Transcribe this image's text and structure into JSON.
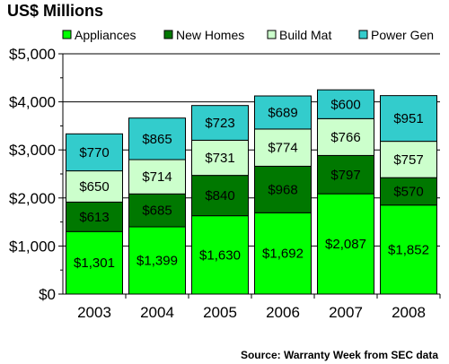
{
  "title": "US$ Millions",
  "source": "Source: Warranty Week from SEC data",
  "chart_data": {
    "type": "bar",
    "stacked": true,
    "categories": [
      "2003",
      "2004",
      "2005",
      "2006",
      "2007",
      "2008"
    ],
    "series": [
      {
        "name": "Appliances",
        "color": "#00ff00",
        "values": [
          1301,
          1399,
          1630,
          1692,
          2087,
          1852
        ],
        "labels": [
          "$1,301",
          "$1,399",
          "$1,630",
          "$1,692",
          "$2,087",
          "$1,852"
        ]
      },
      {
        "name": "New Homes",
        "color": "#007800",
        "values": [
          613,
          685,
          840,
          968,
          797,
          570
        ],
        "labels": [
          "$613",
          "$685",
          "$840",
          "$968",
          "$797",
          "$570"
        ]
      },
      {
        "name": "Build Mat",
        "color": "#ccffcc",
        "values": [
          650,
          714,
          731,
          774,
          766,
          757
        ],
        "labels": [
          "$650",
          "$714",
          "$731",
          "$774",
          "$766",
          "$757"
        ]
      },
      {
        "name": "Power Gen",
        "color": "#33cccc",
        "values": [
          770,
          865,
          723,
          689,
          600,
          951
        ],
        "labels": [
          "$770",
          "$865",
          "$723",
          "$689",
          "$600",
          "$951"
        ]
      }
    ],
    "y_ticks": [
      0,
      1000,
      2000,
      3000,
      4000,
      5000
    ],
    "y_tick_labels": [
      "$0",
      "$1,000",
      "$2,000",
      "$3,000",
      "$4,000",
      "$5,000"
    ],
    "ylim": [
      0,
      5000
    ],
    "grid": true,
    "legend_position": "top"
  }
}
